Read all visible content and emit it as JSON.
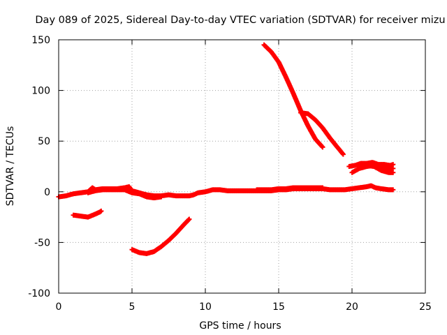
{
  "chart_data": {
    "type": "scatter",
    "title": "Day 089 of 2025, Sidereal Day-to-day VTEC variation (SDTVAR) for receiver mizu",
    "xlabel": "GPS time / hours",
    "ylabel": "SDTVAR / TECUs",
    "xlim": [
      0,
      25
    ],
    "ylim": [
      -100,
      150
    ],
    "xticks": [
      0,
      5,
      10,
      15,
      20,
      25
    ],
    "yticks": [
      -100,
      -50,
      0,
      50,
      100,
      150
    ],
    "xtick_labels": [
      "0",
      "5",
      "10",
      "15",
      "20",
      "25"
    ],
    "ytick_labels": [
      "-100",
      "-50",
      "0",
      "50",
      "100",
      "150"
    ],
    "grid": true,
    "marker": "plus",
    "series_color": "#ff0000",
    "series": [
      {
        "name": "main-0",
        "points": [
          [
            0.0,
            -5
          ],
          [
            0.5,
            -4
          ],
          [
            1.0,
            -2
          ],
          [
            1.5,
            -1
          ],
          [
            2.0,
            0
          ],
          [
            2.3,
            4
          ],
          [
            2.5,
            2
          ],
          [
            3.0,
            3
          ],
          [
            3.5,
            3
          ],
          [
            4.0,
            3
          ],
          [
            4.5,
            4
          ],
          [
            4.8,
            5
          ],
          [
            5.0,
            1
          ],
          [
            5.5,
            -1
          ],
          [
            6.0,
            -3
          ],
          [
            6.5,
            -4
          ],
          [
            7.0,
            -4
          ],
          [
            7.5,
            -3
          ],
          [
            8.0,
            -4
          ],
          [
            8.5,
            -4
          ],
          [
            8.9,
            -4
          ],
          [
            9.2,
            -3
          ],
          [
            9.5,
            -1
          ],
          [
            10.0,
            0
          ],
          [
            10.5,
            2
          ],
          [
            11.0,
            2
          ],
          [
            11.5,
            1
          ],
          [
            12.0,
            1
          ],
          [
            12.5,
            1
          ],
          [
            13.0,
            1
          ],
          [
            13.5,
            1
          ],
          [
            14.0,
            1
          ],
          [
            14.5,
            1
          ],
          [
            15.0,
            2
          ],
          [
            15.5,
            2
          ],
          [
            16.0,
            3
          ],
          [
            16.5,
            3
          ],
          [
            17.0,
            3
          ],
          [
            17.5,
            3
          ],
          [
            18.0,
            3
          ],
          [
            18.5,
            2
          ],
          [
            19.0,
            2
          ],
          [
            19.5,
            2
          ],
          [
            20.0,
            3
          ],
          [
            20.5,
            4
          ],
          [
            21.0,
            5
          ],
          [
            21.3,
            6
          ],
          [
            21.6,
            4
          ],
          [
            22.0,
            3
          ],
          [
            22.5,
            2
          ],
          [
            22.8,
            2
          ]
        ]
      },
      {
        "name": "main-1",
        "points": [
          [
            2.0,
            -1
          ],
          [
            2.5,
            1
          ],
          [
            3.0,
            2
          ],
          [
            3.5,
            2
          ],
          [
            4.0,
            2
          ],
          [
            4.5,
            2
          ],
          [
            5.0,
            -1
          ],
          [
            5.5,
            -2
          ],
          [
            6.0,
            -5
          ],
          [
            6.5,
            -6
          ],
          [
            7.0,
            -5
          ]
        ]
      },
      {
        "name": "main-2",
        "points": [
          [
            13.5,
            2
          ],
          [
            14.0,
            2
          ],
          [
            14.5,
            2
          ],
          [
            15.0,
            3
          ],
          [
            15.5,
            3
          ],
          [
            16.0,
            4
          ],
          [
            16.5,
            4
          ],
          [
            17.0,
            4
          ],
          [
            17.5,
            4
          ],
          [
            18.0,
            4
          ]
        ]
      },
      {
        "name": "early-negative",
        "points": [
          [
            1.0,
            -23
          ],
          [
            1.5,
            -24
          ],
          [
            2.0,
            -25
          ],
          [
            2.5,
            -22
          ],
          [
            2.8,
            -20
          ],
          [
            2.9,
            -19
          ]
        ]
      },
      {
        "name": "trough",
        "points": [
          [
            5.0,
            -57
          ],
          [
            5.5,
            -60
          ],
          [
            6.0,
            -61
          ],
          [
            6.5,
            -59
          ],
          [
            7.0,
            -54
          ],
          [
            7.5,
            -48
          ],
          [
            8.0,
            -41
          ],
          [
            8.5,
            -33
          ],
          [
            8.9,
            -27
          ]
        ]
      },
      {
        "name": "descending-a",
        "points": [
          [
            14.0,
            145
          ],
          [
            14.5,
            138
          ],
          [
            15.0,
            128
          ],
          [
            15.5,
            113
          ],
          [
            16.0,
            97
          ],
          [
            16.5,
            80
          ],
          [
            17.0,
            65
          ],
          [
            17.5,
            52
          ],
          [
            18.0,
            44
          ]
        ]
      },
      {
        "name": "descending-b",
        "points": [
          [
            16.5,
            78
          ],
          [
            17.0,
            77
          ],
          [
            17.5,
            71
          ],
          [
            18.0,
            63
          ],
          [
            18.5,
            53
          ],
          [
            19.0,
            44
          ],
          [
            19.4,
            37
          ]
        ]
      },
      {
        "name": "late-upper",
        "points": [
          [
            19.8,
            25
          ],
          [
            20.2,
            26
          ],
          [
            20.6,
            28
          ],
          [
            21.0,
            28
          ],
          [
            21.4,
            29
          ],
          [
            21.8,
            27
          ],
          [
            22.2,
            27
          ],
          [
            22.6,
            26
          ],
          [
            22.8,
            27
          ]
        ]
      },
      {
        "name": "late-middle",
        "points": [
          [
            20.0,
            19
          ],
          [
            20.5,
            23
          ],
          [
            21.0,
            25
          ],
          [
            21.5,
            26
          ],
          [
            22.0,
            24
          ],
          [
            22.5,
            23
          ],
          [
            22.8,
            23
          ]
        ]
      },
      {
        "name": "late-lower",
        "points": [
          [
            21.0,
            26
          ],
          [
            21.5,
            25
          ],
          [
            22.0,
            21
          ],
          [
            22.5,
            19
          ],
          [
            22.8,
            19
          ]
        ]
      }
    ]
  }
}
